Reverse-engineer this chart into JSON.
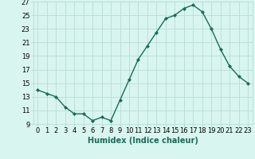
{
  "x": [
    0,
    1,
    2,
    3,
    4,
    5,
    6,
    7,
    8,
    9,
    10,
    11,
    12,
    13,
    14,
    15,
    16,
    17,
    18,
    19,
    20,
    21,
    22,
    23
  ],
  "y": [
    14.0,
    13.5,
    13.0,
    11.5,
    10.5,
    10.5,
    9.5,
    10.0,
    9.5,
    12.5,
    15.5,
    18.5,
    20.5,
    22.5,
    24.5,
    25.0,
    26.0,
    26.5,
    25.5,
    23.0,
    20.0,
    17.5,
    16.0,
    15.0
  ],
  "line_color": "#1a6b5a",
  "marker": "D",
  "markersize": 2.0,
  "linewidth": 1.0,
  "bg_color": "#d8f5f0",
  "grid_color": "#b8ddd8",
  "xlabel": "Humidex (Indice chaleur)",
  "xlim": [
    -0.5,
    23.5
  ],
  "ylim": [
    9,
    27
  ],
  "yticks": [
    9,
    11,
    13,
    15,
    17,
    19,
    21,
    23,
    25,
    27
  ],
  "xticks": [
    0,
    1,
    2,
    3,
    4,
    5,
    6,
    7,
    8,
    9,
    10,
    11,
    12,
    13,
    14,
    15,
    16,
    17,
    18,
    19,
    20,
    21,
    22,
    23
  ],
  "xlabel_fontsize": 7,
  "tick_fontsize": 6
}
